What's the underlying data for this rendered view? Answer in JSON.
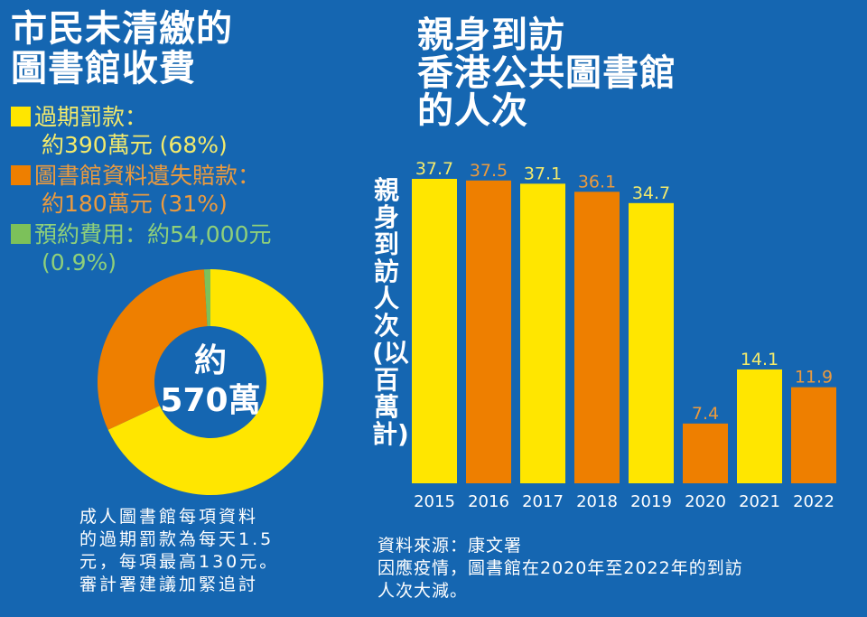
{
  "left": {
    "title_line1": "市民未清繳的",
    "title_line2": "圖書館收費",
    "legend": [
      {
        "label": "過期罰款：",
        "value": "約390萬元 (68%)",
        "color": "#ffe600",
        "text_color": "#f3ea6c"
      },
      {
        "label": "圖書館資料遺失賠款：",
        "value": "約180萬元 (31%)",
        "color": "#ee7f00",
        "text_color": "#eb9a3e"
      },
      {
        "label": "預約費用：約54,000元",
        "value": "(0.9%)",
        "color": "#7cc15a",
        "text_color": "#8fd07a"
      }
    ],
    "center_line1": "約",
    "center_line2": "570萬",
    "note": [
      "成人圖書館每項資料",
      "的過期罰款為每天1.5",
      "元，每項最高130元。",
      "審計署建議加緊追討"
    ]
  },
  "right": {
    "title_line1": "親身到訪",
    "title_line2": "香港公共圖書館",
    "title_line3": "的人次",
    "source": "資料來源：康文署",
    "note": [
      "因應疫情，圖書館在2020年至2022年的到訪",
      "人次大減。"
    ]
  },
  "chart_data": [
    {
      "type": "pie",
      "variant": "donut",
      "slices": [
        {
          "label": "過期罰款",
          "value": 68,
          "color": "#ffe600"
        },
        {
          "label": "圖書館資料遺失賠款",
          "value": 31,
          "color": "#ee7f00"
        },
        {
          "label": "預約費用",
          "value": 0.9,
          "color": "#7cc15a"
        }
      ],
      "center_text": "約570萬"
    },
    {
      "type": "bar",
      "ylabel": "親身到訪人次(以百萬計)",
      "categories": [
        "2015",
        "2016",
        "2017",
        "2018",
        "2019",
        "2020",
        "2021",
        "2022"
      ],
      "values": [
        37.7,
        37.5,
        37.1,
        36.1,
        34.7,
        7.4,
        14.1,
        11.9
      ],
      "data_labels": [
        "37.7",
        "37.5",
        "37.1",
        "36.1",
        "34.7",
        "7.4",
        "14.1",
        "11.9"
      ],
      "colors": [
        "#ffe600",
        "#ee7f00",
        "#ffe600",
        "#ee7f00",
        "#ffe600",
        "#ee7f00",
        "#ffe600",
        "#ee7f00"
      ],
      "label_colors": [
        "#f3ea6c",
        "#eb9a3e",
        "#f3ea6c",
        "#eb9a3e",
        "#f3ea6c",
        "#eb9a3e",
        "#f3ea6c",
        "#eb9a3e"
      ],
      "ylim": [
        0,
        37.7
      ],
      "grid": false
    }
  ]
}
